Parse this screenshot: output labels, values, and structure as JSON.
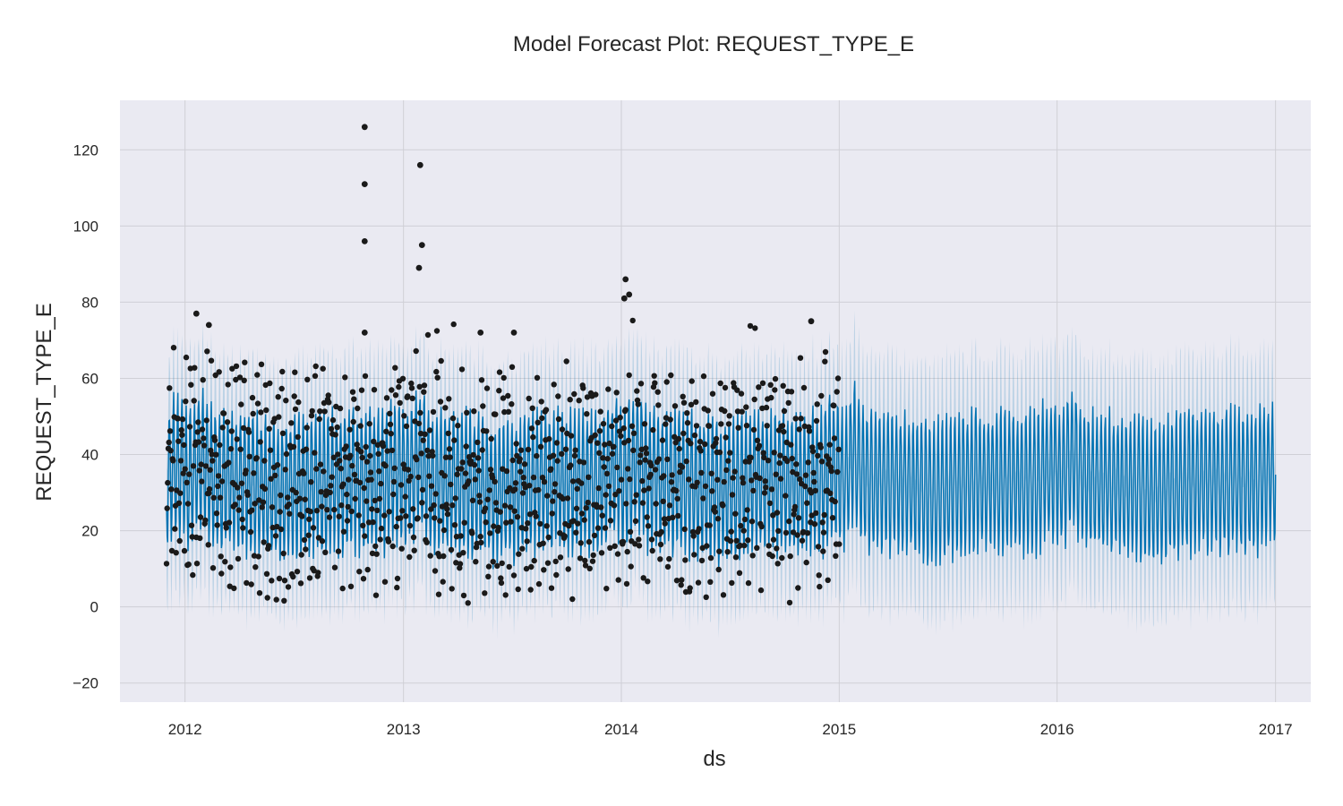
{
  "chart_data": {
    "type": "line",
    "title": "Model Forecast Plot: REQUEST_TYPE_E",
    "xlabel": "ds",
    "ylabel": "REQUEST_TYPE_E",
    "x_range": [
      "2011-09-01",
      "2017-02-01"
    ],
    "xlim": [
      "2011-09-14",
      "2017-03-01"
    ],
    "ylim": [
      -25,
      133
    ],
    "x_ticks": [
      "2012",
      "2013",
      "2014",
      "2015",
      "2016",
      "2017"
    ],
    "y_ticks": [
      "−20",
      "0",
      "20",
      "40",
      "60",
      "80",
      "100",
      "120"
    ],
    "grid": true,
    "colors": {
      "plot_background": "#eaeaf2",
      "grid": "#cfcfd6",
      "forecast_line": "#0072b2",
      "uncertainty_band": "#0072b2",
      "observed_points": "#1a1a1a"
    },
    "series": [
      {
        "kind": "forecast",
        "date_range": [
          "2011-12-01",
          "2017-01-01"
        ],
        "weekly_amplitude_approx": 18,
        "baseline_approx": 33,
        "interval_halfwidth_approx": 16
      },
      {
        "kind": "interval",
        "lower_min_approx": -15,
        "upper_max_approx": 83
      },
      {
        "kind": "observed",
        "date_range": [
          "2011-12-01",
          "2015-01-01"
        ],
        "min_approx": 1,
        "max_approx": 126,
        "notable_points": [
          {
            "x": "2012-10-28",
            "y": 126
          },
          {
            "x": "2012-10-28",
            "y": 111
          },
          {
            "x": "2012-10-28",
            "y": 96
          },
          {
            "x": "2013-01-29",
            "y": 116
          },
          {
            "x": "2013-02-01",
            "y": 95
          },
          {
            "x": "2013-01-27",
            "y": 89
          },
          {
            "x": "2014-01-08",
            "y": 86
          },
          {
            "x": "2014-01-06",
            "y": 81
          },
          {
            "x": "2014-01-14",
            "y": 82
          },
          {
            "x": "2012-01-20",
            "y": 77
          },
          {
            "x": "2012-02-10",
            "y": 74
          },
          {
            "x": "2013-05-10",
            "y": 72
          },
          {
            "x": "2013-07-05",
            "y": 72
          },
          {
            "x": "2014-11-15",
            "y": 75
          },
          {
            "x": "2012-10-28",
            "y": 72
          }
        ]
      }
    ]
  }
}
